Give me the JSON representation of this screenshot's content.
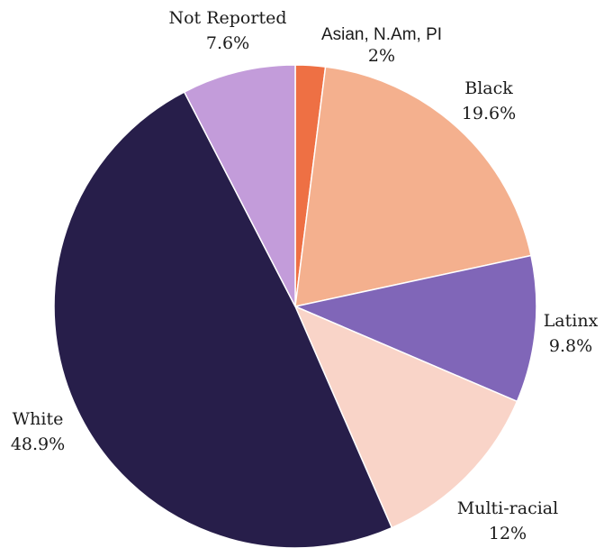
{
  "chart_data": {
    "type": "pie",
    "start_angle_deg": 0,
    "direction": "clockwise",
    "slices": [
      {
        "label": "Asian, N.Am, PI",
        "pct_label": "2%",
        "value": 2.0,
        "color": "#EE7044"
      },
      {
        "label": "Black",
        "pct_label": "19.6%",
        "value": 19.6,
        "color": "#F4B08E"
      },
      {
        "label": "Latinx",
        "pct_label": "9.8%",
        "value": 9.8,
        "color": "#8066B8"
      },
      {
        "label": "Multi-racial",
        "pct_label": "12%",
        "value": 12.0,
        "color": "#F9D4C8"
      },
      {
        "label": "White",
        "pct_label": "48.9%",
        "value": 48.9,
        "color": "#271E4A"
      },
      {
        "label": "Not Reported",
        "pct_label": "7.6%",
        "value": 7.6,
        "color": "#C39CDA"
      }
    ]
  }
}
